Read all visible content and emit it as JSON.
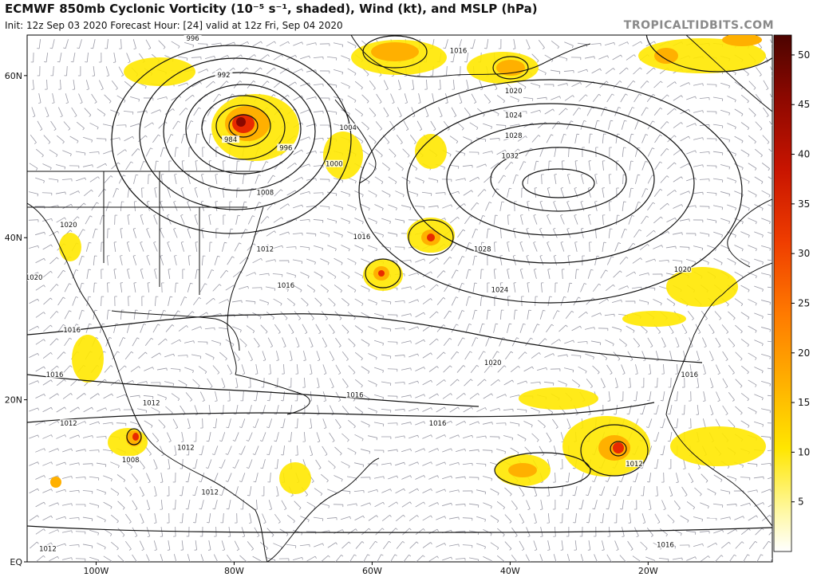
{
  "header": {
    "title": "ECMWF 850mb Cyclonic Vorticity (10⁻⁵ s⁻¹, shaded), Wind (kt), and MSLP (hPa)",
    "subtitle": "Init: 12z Sep 03 2020   Forecast Hour: [24]   valid at 12z Fri, Sep 04 2020",
    "watermark": "TROPICALTIDBITS.COM"
  },
  "map": {
    "lat_labels": [
      "60N",
      "40N",
      "20N",
      "EQ"
    ],
    "lon_labels": [
      "100W",
      "80W",
      "60W",
      "40W",
      "20W"
    ],
    "isobar_labels": [
      {
        "text": "996",
        "lon": -86,
        "lat": 64.5
      },
      {
        "text": "992",
        "lon": -81.5,
        "lat": 60
      },
      {
        "text": "984",
        "lon": -80.5,
        "lat": 52
      },
      {
        "text": "996",
        "lon": -72.5,
        "lat": 51
      },
      {
        "text": "1000",
        "lon": -65.5,
        "lat": 49
      },
      {
        "text": "1004",
        "lon": -63.5,
        "lat": 53.5
      },
      {
        "text": "1008",
        "lon": -75.5,
        "lat": 45.5
      },
      {
        "text": "1012",
        "lon": -75.5,
        "lat": 38.5
      },
      {
        "text": "1016",
        "lon": -72.5,
        "lat": 34
      },
      {
        "text": "1016",
        "lon": -61.5,
        "lat": 40
      },
      {
        "text": "1016",
        "lon": -47.5,
        "lat": 63
      },
      {
        "text": "1020",
        "lon": -39.5,
        "lat": 58
      },
      {
        "text": "1024",
        "lon": -39.5,
        "lat": 55
      },
      {
        "text": "1028",
        "lon": -39.5,
        "lat": 52.5
      },
      {
        "text": "1032",
        "lon": -40,
        "lat": 50
      },
      {
        "text": "1028",
        "lon": -44,
        "lat": 38.5
      },
      {
        "text": "1024",
        "lon": -41.5,
        "lat": 33.5
      },
      {
        "text": "1020",
        "lon": -15,
        "lat": 36
      },
      {
        "text": "1020",
        "lon": -42.5,
        "lat": 24.5
      },
      {
        "text": "1016",
        "lon": -62.5,
        "lat": 20.5
      },
      {
        "text": "1016",
        "lon": -50.5,
        "lat": 17
      },
      {
        "text": "1016",
        "lon": -14,
        "lat": 23
      },
      {
        "text": "1016",
        "lon": -17.5,
        "lat": 2
      },
      {
        "text": "1012",
        "lon": -22,
        "lat": 12
      },
      {
        "text": "1012",
        "lon": -92,
        "lat": 19.5
      },
      {
        "text": "1012",
        "lon": -104,
        "lat": 17
      },
      {
        "text": "1012",
        "lon": -87,
        "lat": 14
      },
      {
        "text": "1012",
        "lon": -83.5,
        "lat": 8.5
      },
      {
        "text": "1012",
        "lon": -107,
        "lat": 1.5
      },
      {
        "text": "1008",
        "lon": -95,
        "lat": 12.5
      },
      {
        "text": "1016",
        "lon": -106,
        "lat": 23
      },
      {
        "text": "1016",
        "lon": -103.5,
        "lat": 28.5
      },
      {
        "text": "1020",
        "lon": -104,
        "lat": 41.5
      },
      {
        "text": "1020",
        "lon": -109,
        "lat": 35
      }
    ]
  },
  "colorbar": {
    "ticks": [
      5,
      10,
      15,
      20,
      25,
      30,
      35,
      40,
      45,
      50
    ]
  }
}
